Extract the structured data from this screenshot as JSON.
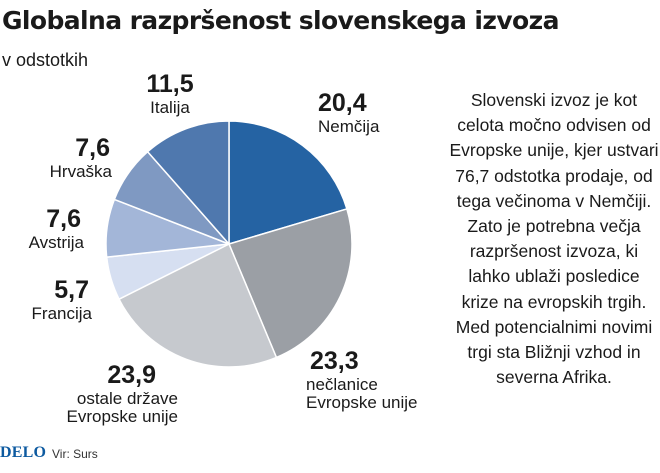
{
  "title": "Globalna razpršenost slovenskega izvoza",
  "subtitle": "v odstotkih",
  "colors": {
    "slices": [
      "#2563a3",
      "#9b9fa5",
      "#c6c9ce",
      "#d6dff1",
      "#a3b6d8",
      "#7f99c2",
      "#4f78ae"
    ]
  },
  "chart_data": {
    "type": "pie",
    "title": "Globalna razpršenost slovenskega izvoza",
    "subtitle": "v odstotkih",
    "start": "12 o'clock",
    "direction": "clockwise",
    "slices": [
      {
        "value": "20,4",
        "label": "Nemčija",
        "v": 20.4
      },
      {
        "value": "23,3",
        "label": "nečlanice Evropske unije",
        "v": 23.3
      },
      {
        "value": "23,9",
        "label": "ostale države Evropske unije",
        "v": 23.9
      },
      {
        "value": "5,7",
        "label": "Francija",
        "v": 5.7
      },
      {
        "value": "7,6",
        "label": "Avstrija",
        "v": 7.6
      },
      {
        "value": "7,6",
        "label": "Hrvaška",
        "v": 7.6
      },
      {
        "value": "11,5",
        "label": "Italija",
        "v": 11.5
      }
    ],
    "labels": {
      "nemcija": {
        "value": "20,4",
        "name": "Nemčija"
      },
      "neclanice": {
        "value": "23,3",
        "name1": "nečlanice",
        "name2": "Evropske unije"
      },
      "ostale": {
        "value": "23,9",
        "name1": "ostale države",
        "name2": "Evropske unije"
      },
      "francija": {
        "value": "5,7",
        "name": "Francija"
      },
      "avstrija": {
        "value": "7,6",
        "name": "Avstrija"
      },
      "hrvaska": {
        "value": "7,6",
        "name": "Hrvaška"
      },
      "italija": {
        "value": "11,5",
        "name": "Italija"
      }
    }
  },
  "note": "Slovenski izvoz je kot celota močno odvisen od Evropske unije, kjer ustvari 76,7 odstotka prodaje, od tega večinoma v Nemčiji. Zato je potrebna večja razpršenost izvoza, ki lahko ublaži posledice krize na evropskih trgih. Med potencialnimi novimi trgi sta Bližnji vzhod in severna Afrika.",
  "footer": {
    "logo": "DELO",
    "source": "Vir: Surs"
  }
}
